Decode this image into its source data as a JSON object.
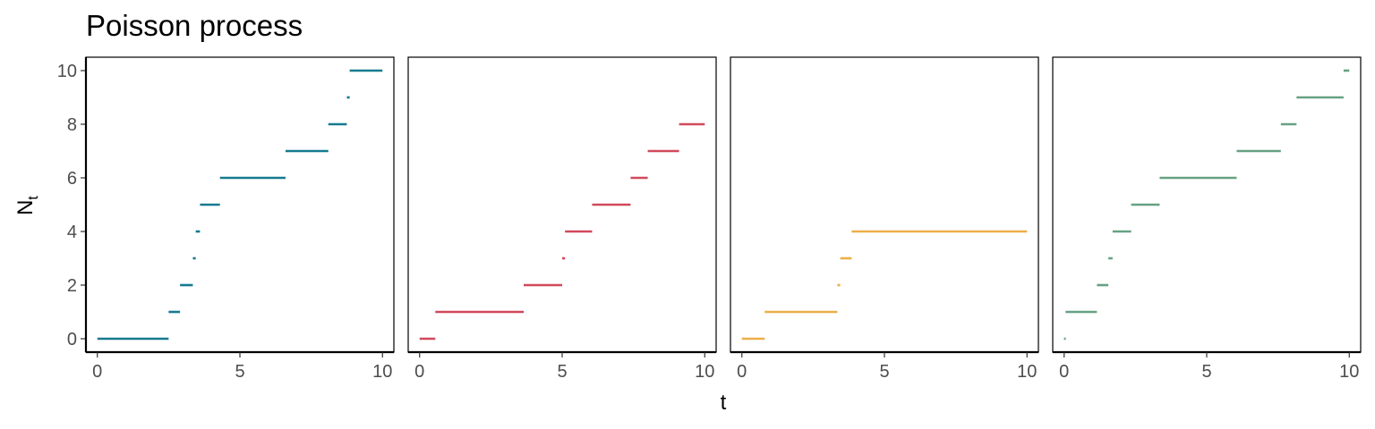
{
  "chart_data": {
    "type": "line",
    "title": "Poisson process",
    "xlabel": "t",
    "ylabel_main": "N",
    "ylabel_sub": "t",
    "xlim": [
      -0.4,
      10.4
    ],
    "ylim": [
      -0.5,
      10.5
    ],
    "xticks": [
      "0",
      "5",
      "10"
    ],
    "yticks": [
      "0",
      "2",
      "4",
      "6",
      "8",
      "10"
    ],
    "grid": false,
    "legend": "none",
    "panels": [
      {
        "color": "#167a8f",
        "steps": [
          {
            "x0": 0.0,
            "x1": 2.5,
            "y": 0
          },
          {
            "x0": 2.5,
            "x1": 2.9,
            "y": 1
          },
          {
            "x0": 2.9,
            "x1": 3.35,
            "y": 2
          },
          {
            "x0": 3.35,
            "x1": 3.45,
            "y": 3
          },
          {
            "x0": 3.45,
            "x1": 3.6,
            "y": 4
          },
          {
            "x0": 3.6,
            "x1": 4.3,
            "y": 5
          },
          {
            "x0": 4.3,
            "x1": 6.6,
            "y": 6
          },
          {
            "x0": 6.6,
            "x1": 8.1,
            "y": 7
          },
          {
            "x0": 8.1,
            "x1": 8.75,
            "y": 8
          },
          {
            "x0": 8.75,
            "x1": 8.85,
            "y": 9
          },
          {
            "x0": 8.85,
            "x1": 10.0,
            "y": 10
          }
        ]
      },
      {
        "color": "#d1495b",
        "steps": [
          {
            "x0": 0.0,
            "x1": 0.55,
            "y": 0
          },
          {
            "x0": 0.55,
            "x1": 3.65,
            "y": 1
          },
          {
            "x0": 3.65,
            "x1": 5.0,
            "y": 2
          },
          {
            "x0": 5.0,
            "x1": 5.1,
            "y": 3
          },
          {
            "x0": 5.1,
            "x1": 6.05,
            "y": 4
          },
          {
            "x0": 6.05,
            "x1": 7.4,
            "y": 5
          },
          {
            "x0": 7.4,
            "x1": 8.0,
            "y": 6
          },
          {
            "x0": 8.0,
            "x1": 9.1,
            "y": 7
          },
          {
            "x0": 9.1,
            "x1": 10.0,
            "y": 8
          }
        ]
      },
      {
        "color": "#edae49",
        "steps": [
          {
            "x0": 0.0,
            "x1": 0.8,
            "y": 0
          },
          {
            "x0": 0.8,
            "x1": 3.35,
            "y": 1
          },
          {
            "x0": 3.35,
            "x1": 3.45,
            "y": 2
          },
          {
            "x0": 3.45,
            "x1": 3.85,
            "y": 3
          },
          {
            "x0": 3.85,
            "x1": 10.0,
            "y": 4
          }
        ]
      },
      {
        "color": "#66a182",
        "steps": [
          {
            "x0": 0.0,
            "x1": 0.05,
            "y": 0
          },
          {
            "x0": 0.05,
            "x1": 1.15,
            "y": 1
          },
          {
            "x0": 1.15,
            "x1": 1.55,
            "y": 2
          },
          {
            "x0": 1.55,
            "x1": 1.7,
            "y": 3
          },
          {
            "x0": 1.7,
            "x1": 2.35,
            "y": 4
          },
          {
            "x0": 2.35,
            "x1": 3.35,
            "y": 5
          },
          {
            "x0": 3.35,
            "x1": 6.05,
            "y": 6
          },
          {
            "x0": 6.05,
            "x1": 7.6,
            "y": 7
          },
          {
            "x0": 7.6,
            "x1": 8.15,
            "y": 8
          },
          {
            "x0": 8.15,
            "x1": 9.8,
            "y": 9
          },
          {
            "x0": 9.8,
            "x1": 10.0,
            "y": 10
          }
        ]
      }
    ]
  }
}
